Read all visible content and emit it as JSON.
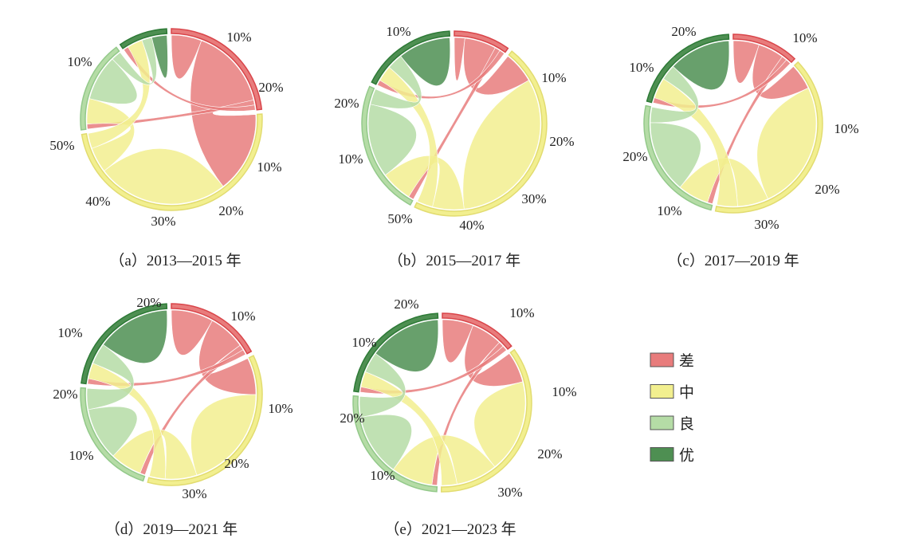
{
  "colors": {
    "poor": "#e87c7c",
    "medium": "#f2ef8f",
    "good": "#b5dca6",
    "excellent": "#4e8f52",
    "poor_arc": "#d9454a",
    "medium_arc": "#e2dc70",
    "good_arc": "#93c98a",
    "excellent_arc": "#2d7a36"
  },
  "legend": {
    "placement": "right",
    "items": [
      {
        "key": "poor",
        "label": "差"
      },
      {
        "key": "medium",
        "label": "中"
      },
      {
        "key": "good",
        "label": "良"
      },
      {
        "key": "excellent",
        "label": "优"
      }
    ]
  },
  "chart_data": [
    {
      "type": "chord",
      "caption": "（a）2013—2015 年",
      "groups": [
        "差",
        "中",
        "良",
        "优"
      ],
      "matrix": [
        [
          6,
          16,
          1,
          1
        ],
        [
          16,
          26,
          5,
          3
        ],
        [
          1,
          5,
          9,
          2
        ],
        [
          1,
          3,
          2,
          3
        ]
      ],
      "tick_labels": [
        "10%",
        "20%",
        "10%",
        "20%",
        "30%",
        "40%",
        "50%",
        "10%"
      ]
    },
    {
      "type": "chord",
      "caption": "（b）2015—2017 年",
      "groups": [
        "差",
        "中",
        "良",
        "优"
      ],
      "matrix": [
        [
          2,
          6,
          1,
          1
        ],
        [
          6,
          32,
          6,
          3
        ],
        [
          1,
          6,
          14,
          3
        ],
        [
          1,
          3,
          3,
          10
        ]
      ],
      "tick_labels": [
        "10%",
        "10%",
        "20%",
        "30%",
        "40%",
        "50%",
        "10%",
        "20%"
      ]
    },
    {
      "type": "chord",
      "caption": "（c）2017—2019 年",
      "groups": [
        "差",
        "中",
        "良",
        "优"
      ],
      "matrix": [
        [
          5,
          5,
          1,
          1
        ],
        [
          5,
          25,
          6,
          4
        ],
        [
          1,
          6,
          14,
          3
        ],
        [
          1,
          4,
          3,
          12
        ]
      ],
      "tick_labels": [
        "20%",
        "10%",
        "10%",
        "10%",
        "20%",
        "30%",
        "10%",
        "20%"
      ]
    },
    {
      "type": "chord",
      "caption": "（d）2019—2021 年",
      "groups": [
        "差",
        "中",
        "良",
        "优"
      ],
      "matrix": [
        [
          8,
          7,
          1,
          1
        ],
        [
          7,
          20,
          6,
          3
        ],
        [
          1,
          6,
          10,
          4
        ],
        [
          1,
          3,
          4,
          14
        ]
      ],
      "tick_labels": [
        "20%",
        "10%",
        "10%",
        "20%",
        "10%",
        "10%",
        "20%",
        "30%"
      ]
    },
    {
      "type": "chord",
      "caption": "（e）2021—2023 年",
      "groups": [
        "差",
        "中",
        "良",
        "优"
      ],
      "matrix": [
        [
          6,
          6,
          1,
          1
        ],
        [
          6,
          18,
          8,
          3
        ],
        [
          1,
          8,
          12,
          4
        ],
        [
          1,
          3,
          4,
          14
        ]
      ],
      "tick_labels": [
        "20%",
        "10%",
        "10%",
        "10%",
        "20%",
        "20%",
        "10%",
        "30%"
      ]
    }
  ]
}
